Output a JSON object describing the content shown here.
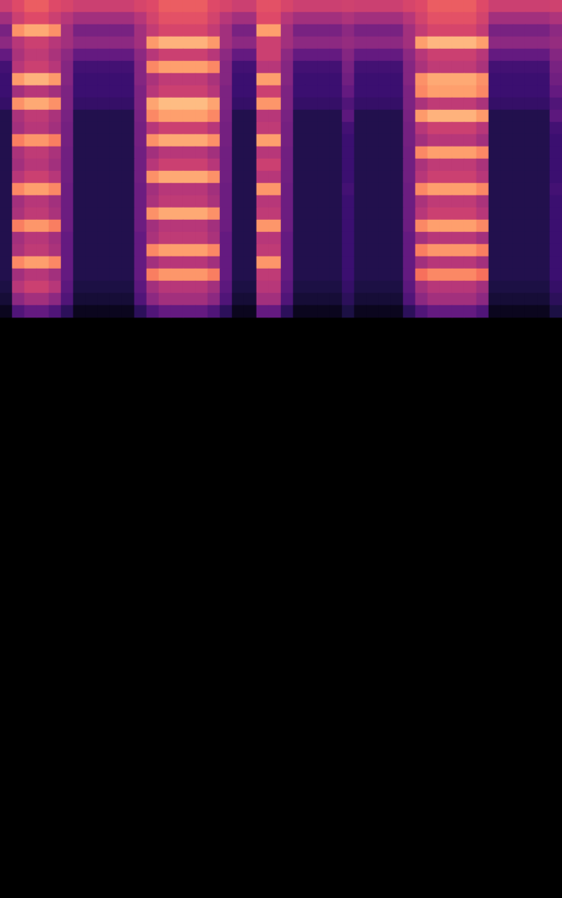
{
  "chart_data": {
    "type": "heatmap",
    "color_range": [
      0,
      1
    ],
    "tick_labels": false,
    "grid": false,
    "cells": [
      [
        0.55,
        0.6,
        0.65,
        0.65,
        0.6,
        0.58,
        0.55,
        0.55,
        0.55,
        0.55,
        0.55,
        0.58,
        0.6,
        0.65,
        0.65,
        0.65,
        0.65,
        0.6,
        0.58,
        0.55,
        0.55,
        0.62,
        0.62,
        0.58,
        0.55,
        0.55,
        0.55,
        0.55,
        0.56,
        0.55,
        0.55,
        0.55,
        0.55,
        0.58,
        0.6,
        0.65,
        0.65,
        0.65,
        0.65,
        0.6,
        0.55,
        0.55,
        0.55,
        0.55,
        0.55,
        0.56
      ],
      [
        0.45,
        0.55,
        0.6,
        0.6,
        0.55,
        0.5,
        0.45,
        0.45,
        0.45,
        0.45,
        0.45,
        0.5,
        0.57,
        0.62,
        0.62,
        0.62,
        0.62,
        0.57,
        0.5,
        0.45,
        0.45,
        0.6,
        0.6,
        0.5,
        0.45,
        0.45,
        0.45,
        0.45,
        0.48,
        0.45,
        0.45,
        0.45,
        0.45,
        0.5,
        0.57,
        0.62,
        0.62,
        0.62,
        0.62,
        0.57,
        0.45,
        0.45,
        0.45,
        0.45,
        0.45,
        0.48
      ],
      [
        0.35,
        0.77,
        0.82,
        0.82,
        0.77,
        0.45,
        0.35,
        0.35,
        0.35,
        0.35,
        0.35,
        0.45,
        0.53,
        0.58,
        0.58,
        0.58,
        0.58,
        0.53,
        0.45,
        0.35,
        0.35,
        0.8,
        0.8,
        0.45,
        0.35,
        0.35,
        0.35,
        0.35,
        0.4,
        0.35,
        0.35,
        0.35,
        0.35,
        0.45,
        0.53,
        0.58,
        0.58,
        0.58,
        0.58,
        0.53,
        0.35,
        0.35,
        0.35,
        0.35,
        0.35,
        0.4
      ],
      [
        0.4,
        0.5,
        0.55,
        0.55,
        0.5,
        0.45,
        0.4,
        0.4,
        0.4,
        0.4,
        0.4,
        0.45,
        0.79,
        0.84,
        0.84,
        0.84,
        0.84,
        0.79,
        0.45,
        0.4,
        0.4,
        0.55,
        0.55,
        0.45,
        0.4,
        0.4,
        0.4,
        0.4,
        0.42,
        0.4,
        0.4,
        0.4,
        0.4,
        0.45,
        0.8,
        0.85,
        0.85,
        0.85,
        0.85,
        0.8,
        0.4,
        0.4,
        0.4,
        0.4,
        0.4,
        0.42
      ],
      [
        0.3,
        0.47,
        0.52,
        0.52,
        0.47,
        0.4,
        0.3,
        0.3,
        0.3,
        0.3,
        0.3,
        0.4,
        0.5,
        0.55,
        0.55,
        0.55,
        0.55,
        0.5,
        0.4,
        0.3,
        0.3,
        0.55,
        0.55,
        0.4,
        0.3,
        0.3,
        0.3,
        0.3,
        0.38,
        0.3,
        0.3,
        0.3,
        0.3,
        0.4,
        0.5,
        0.55,
        0.55,
        0.55,
        0.55,
        0.5,
        0.3,
        0.3,
        0.3,
        0.3,
        0.3,
        0.38
      ],
      [
        0.22,
        0.5,
        0.55,
        0.55,
        0.5,
        0.38,
        0.22,
        0.22,
        0.22,
        0.22,
        0.22,
        0.38,
        0.75,
        0.8,
        0.8,
        0.8,
        0.8,
        0.75,
        0.38,
        0.22,
        0.22,
        0.5,
        0.5,
        0.38,
        0.22,
        0.22,
        0.22,
        0.22,
        0.35,
        0.22,
        0.22,
        0.22,
        0.22,
        0.38,
        0.47,
        0.52,
        0.52,
        0.52,
        0.52,
        0.47,
        0.22,
        0.22,
        0.22,
        0.22,
        0.22,
        0.35
      ],
      [
        0.2,
        0.79,
        0.84,
        0.84,
        0.79,
        0.38,
        0.2,
        0.2,
        0.2,
        0.2,
        0.2,
        0.38,
        0.47,
        0.52,
        0.52,
        0.52,
        0.52,
        0.47,
        0.38,
        0.2,
        0.2,
        0.8,
        0.8,
        0.38,
        0.2,
        0.2,
        0.2,
        0.2,
        0.33,
        0.2,
        0.2,
        0.2,
        0.2,
        0.38,
        0.77,
        0.82,
        0.82,
        0.82,
        0.82,
        0.77,
        0.2,
        0.2,
        0.2,
        0.2,
        0.2,
        0.33
      ],
      [
        0.2,
        0.45,
        0.5,
        0.5,
        0.45,
        0.36,
        0.2,
        0.2,
        0.2,
        0.2,
        0.2,
        0.36,
        0.5,
        0.55,
        0.55,
        0.55,
        0.55,
        0.5,
        0.36,
        0.2,
        0.2,
        0.55,
        0.55,
        0.36,
        0.2,
        0.2,
        0.2,
        0.2,
        0.3,
        0.2,
        0.2,
        0.2,
        0.2,
        0.36,
        0.75,
        0.8,
        0.8,
        0.8,
        0.8,
        0.75,
        0.2,
        0.2,
        0.2,
        0.2,
        0.2,
        0.3
      ],
      [
        0.18,
        0.77,
        0.82,
        0.82,
        0.77,
        0.36,
        0.18,
        0.18,
        0.18,
        0.18,
        0.18,
        0.36,
        0.81,
        0.86,
        0.86,
        0.86,
        0.86,
        0.81,
        0.36,
        0.18,
        0.18,
        0.78,
        0.78,
        0.36,
        0.18,
        0.18,
        0.18,
        0.18,
        0.25,
        0.18,
        0.18,
        0.18,
        0.18,
        0.36,
        0.47,
        0.52,
        0.52,
        0.52,
        0.52,
        0.47,
        0.18,
        0.18,
        0.18,
        0.18,
        0.18,
        0.25
      ],
      [
        0.12,
        0.47,
        0.52,
        0.52,
        0.47,
        0.35,
        0.12,
        0.12,
        0.12,
        0.12,
        0.12,
        0.35,
        0.75,
        0.8,
        0.8,
        0.8,
        0.8,
        0.75,
        0.35,
        0.12,
        0.12,
        0.5,
        0.5,
        0.35,
        0.12,
        0.12,
        0.12,
        0.12,
        0.28,
        0.12,
        0.12,
        0.12,
        0.12,
        0.35,
        0.79,
        0.84,
        0.84,
        0.84,
        0.84,
        0.79,
        0.12,
        0.12,
        0.12,
        0.12,
        0.12,
        0.28
      ],
      [
        0.12,
        0.45,
        0.5,
        0.5,
        0.45,
        0.34,
        0.12,
        0.12,
        0.12,
        0.12,
        0.12,
        0.34,
        0.5,
        0.55,
        0.55,
        0.55,
        0.55,
        0.5,
        0.34,
        0.12,
        0.12,
        0.52,
        0.52,
        0.34,
        0.12,
        0.12,
        0.12,
        0.12,
        0.22,
        0.12,
        0.12,
        0.12,
        0.12,
        0.34,
        0.5,
        0.55,
        0.55,
        0.55,
        0.55,
        0.5,
        0.12,
        0.12,
        0.12,
        0.12,
        0.12,
        0.22
      ],
      [
        0.12,
        0.73,
        0.78,
        0.78,
        0.73,
        0.34,
        0.12,
        0.12,
        0.12,
        0.12,
        0.12,
        0.34,
        0.77,
        0.82,
        0.82,
        0.82,
        0.82,
        0.77,
        0.34,
        0.12,
        0.12,
        0.8,
        0.8,
        0.34,
        0.12,
        0.12,
        0.12,
        0.12,
        0.2,
        0.12,
        0.12,
        0.12,
        0.12,
        0.34,
        0.45,
        0.5,
        0.5,
        0.5,
        0.5,
        0.45,
        0.12,
        0.12,
        0.12,
        0.12,
        0.12,
        0.2
      ],
      [
        0.12,
        0.47,
        0.52,
        0.52,
        0.47,
        0.33,
        0.12,
        0.12,
        0.12,
        0.12,
        0.12,
        0.33,
        0.45,
        0.5,
        0.5,
        0.5,
        0.5,
        0.45,
        0.33,
        0.12,
        0.12,
        0.5,
        0.5,
        0.33,
        0.12,
        0.12,
        0.12,
        0.12,
        0.2,
        0.12,
        0.12,
        0.12,
        0.12,
        0.33,
        0.75,
        0.8,
        0.8,
        0.8,
        0.8,
        0.75,
        0.12,
        0.12,
        0.12,
        0.12,
        0.12,
        0.2
      ],
      [
        0.12,
        0.45,
        0.5,
        0.5,
        0.45,
        0.33,
        0.12,
        0.12,
        0.12,
        0.12,
        0.12,
        0.33,
        0.5,
        0.55,
        0.55,
        0.55,
        0.55,
        0.5,
        0.33,
        0.12,
        0.12,
        0.55,
        0.55,
        0.33,
        0.12,
        0.12,
        0.12,
        0.12,
        0.2,
        0.12,
        0.12,
        0.12,
        0.12,
        0.33,
        0.47,
        0.52,
        0.52,
        0.52,
        0.52,
        0.47,
        0.12,
        0.12,
        0.12,
        0.12,
        0.12,
        0.2
      ],
      [
        0.12,
        0.5,
        0.55,
        0.55,
        0.5,
        0.33,
        0.12,
        0.12,
        0.12,
        0.12,
        0.12,
        0.33,
        0.77,
        0.82,
        0.82,
        0.82,
        0.82,
        0.77,
        0.33,
        0.12,
        0.12,
        0.5,
        0.5,
        0.33,
        0.12,
        0.12,
        0.12,
        0.12,
        0.2,
        0.12,
        0.12,
        0.12,
        0.12,
        0.33,
        0.5,
        0.55,
        0.55,
        0.55,
        0.55,
        0.5,
        0.12,
        0.12,
        0.12,
        0.12,
        0.12,
        0.2
      ],
      [
        0.12,
        0.75,
        0.8,
        0.8,
        0.75,
        0.32,
        0.12,
        0.12,
        0.12,
        0.12,
        0.12,
        0.32,
        0.45,
        0.5,
        0.5,
        0.5,
        0.5,
        0.45,
        0.32,
        0.12,
        0.12,
        0.78,
        0.78,
        0.32,
        0.12,
        0.12,
        0.12,
        0.12,
        0.22,
        0.12,
        0.12,
        0.12,
        0.12,
        0.32,
        0.75,
        0.8,
        0.8,
        0.8,
        0.8,
        0.75,
        0.12,
        0.12,
        0.12,
        0.12,
        0.12,
        0.22
      ],
      [
        0.12,
        0.45,
        0.5,
        0.5,
        0.45,
        0.32,
        0.12,
        0.12,
        0.12,
        0.12,
        0.12,
        0.32,
        0.47,
        0.52,
        0.52,
        0.52,
        0.52,
        0.47,
        0.32,
        0.12,
        0.12,
        0.5,
        0.5,
        0.32,
        0.12,
        0.12,
        0.12,
        0.12,
        0.2,
        0.12,
        0.12,
        0.12,
        0.12,
        0.32,
        0.47,
        0.52,
        0.52,
        0.52,
        0.52,
        0.47,
        0.12,
        0.12,
        0.12,
        0.12,
        0.12,
        0.2
      ],
      [
        0.12,
        0.47,
        0.52,
        0.52,
        0.47,
        0.32,
        0.12,
        0.12,
        0.12,
        0.12,
        0.12,
        0.32,
        0.77,
        0.82,
        0.82,
        0.82,
        0.82,
        0.77,
        0.32,
        0.12,
        0.12,
        0.52,
        0.52,
        0.32,
        0.12,
        0.12,
        0.12,
        0.12,
        0.2,
        0.12,
        0.12,
        0.12,
        0.12,
        0.32,
        0.5,
        0.55,
        0.55,
        0.55,
        0.55,
        0.5,
        0.12,
        0.12,
        0.12,
        0.12,
        0.12,
        0.2
      ],
      [
        0.12,
        0.73,
        0.78,
        0.78,
        0.73,
        0.32,
        0.12,
        0.12,
        0.12,
        0.12,
        0.12,
        0.32,
        0.45,
        0.5,
        0.5,
        0.5,
        0.5,
        0.45,
        0.32,
        0.12,
        0.12,
        0.78,
        0.78,
        0.32,
        0.12,
        0.12,
        0.12,
        0.12,
        0.2,
        0.12,
        0.12,
        0.12,
        0.12,
        0.32,
        0.75,
        0.8,
        0.8,
        0.8,
        0.8,
        0.75,
        0.12,
        0.12,
        0.12,
        0.12,
        0.12,
        0.2
      ],
      [
        0.12,
        0.45,
        0.5,
        0.5,
        0.45,
        0.3,
        0.12,
        0.12,
        0.12,
        0.12,
        0.12,
        0.3,
        0.47,
        0.52,
        0.52,
        0.52,
        0.52,
        0.47,
        0.3,
        0.12,
        0.12,
        0.5,
        0.5,
        0.3,
        0.12,
        0.12,
        0.12,
        0.12,
        0.2,
        0.12,
        0.12,
        0.12,
        0.12,
        0.3,
        0.45,
        0.5,
        0.5,
        0.5,
        0.5,
        0.45,
        0.12,
        0.12,
        0.12,
        0.12,
        0.12,
        0.2
      ],
      [
        0.12,
        0.47,
        0.52,
        0.52,
        0.47,
        0.3,
        0.12,
        0.12,
        0.12,
        0.12,
        0.12,
        0.3,
        0.75,
        0.8,
        0.8,
        0.8,
        0.8,
        0.75,
        0.3,
        0.12,
        0.12,
        0.52,
        0.52,
        0.3,
        0.12,
        0.12,
        0.12,
        0.12,
        0.2,
        0.12,
        0.12,
        0.12,
        0.12,
        0.3,
        0.73,
        0.78,
        0.78,
        0.78,
        0.78,
        0.73,
        0.12,
        0.12,
        0.12,
        0.12,
        0.12,
        0.2
      ],
      [
        0.12,
        0.75,
        0.8,
        0.8,
        0.75,
        0.3,
        0.12,
        0.12,
        0.12,
        0.12,
        0.12,
        0.3,
        0.45,
        0.5,
        0.5,
        0.5,
        0.5,
        0.45,
        0.3,
        0.12,
        0.12,
        0.78,
        0.78,
        0.3,
        0.12,
        0.12,
        0.12,
        0.12,
        0.2,
        0.12,
        0.12,
        0.12,
        0.12,
        0.3,
        0.45,
        0.5,
        0.5,
        0.5,
        0.5,
        0.45,
        0.12,
        0.12,
        0.12,
        0.12,
        0.12,
        0.2
      ],
      [
        0.12,
        0.45,
        0.5,
        0.5,
        0.45,
        0.3,
        0.12,
        0.12,
        0.12,
        0.12,
        0.12,
        0.3,
        0.73,
        0.78,
        0.78,
        0.78,
        0.78,
        0.73,
        0.3,
        0.12,
        0.12,
        0.52,
        0.52,
        0.3,
        0.12,
        0.12,
        0.12,
        0.12,
        0.2,
        0.12,
        0.12,
        0.12,
        0.12,
        0.3,
        0.7,
        0.75,
        0.75,
        0.75,
        0.75,
        0.7,
        0.12,
        0.12,
        0.12,
        0.12,
        0.12,
        0.2
      ],
      [
        0.1,
        0.5,
        0.55,
        0.55,
        0.5,
        0.28,
        0.1,
        0.1,
        0.1,
        0.1,
        0.1,
        0.28,
        0.45,
        0.5,
        0.5,
        0.5,
        0.5,
        0.45,
        0.28,
        0.1,
        0.1,
        0.5,
        0.5,
        0.28,
        0.1,
        0.1,
        0.1,
        0.1,
        0.18,
        0.1,
        0.1,
        0.1,
        0.1,
        0.28,
        0.45,
        0.5,
        0.5,
        0.5,
        0.5,
        0.45,
        0.1,
        0.1,
        0.1,
        0.1,
        0.1,
        0.18
      ],
      [
        0.08,
        0.4,
        0.45,
        0.45,
        0.4,
        0.25,
        0.08,
        0.08,
        0.08,
        0.08,
        0.08,
        0.25,
        0.4,
        0.45,
        0.45,
        0.45,
        0.45,
        0.4,
        0.25,
        0.08,
        0.08,
        0.45,
        0.45,
        0.25,
        0.08,
        0.08,
        0.08,
        0.08,
        0.15,
        0.08,
        0.08,
        0.08,
        0.08,
        0.25,
        0.4,
        0.45,
        0.45,
        0.45,
        0.45,
        0.4,
        0.08,
        0.08,
        0.08,
        0.08,
        0.08,
        0.15
      ],
      [
        0.04,
        0.25,
        0.3,
        0.3,
        0.25,
        0.15,
        0.04,
        0.04,
        0.04,
        0.04,
        0.04,
        0.15,
        0.25,
        0.3,
        0.3,
        0.3,
        0.3,
        0.25,
        0.15,
        0.04,
        0.04,
        0.3,
        0.3,
        0.15,
        0.04,
        0.04,
        0.04,
        0.04,
        0.1,
        0.04,
        0.04,
        0.04,
        0.04,
        0.15,
        0.25,
        0.3,
        0.3,
        0.3,
        0.3,
        0.25,
        0.04,
        0.04,
        0.04,
        0.04,
        0.04,
        0.1
      ]
    ]
  }
}
